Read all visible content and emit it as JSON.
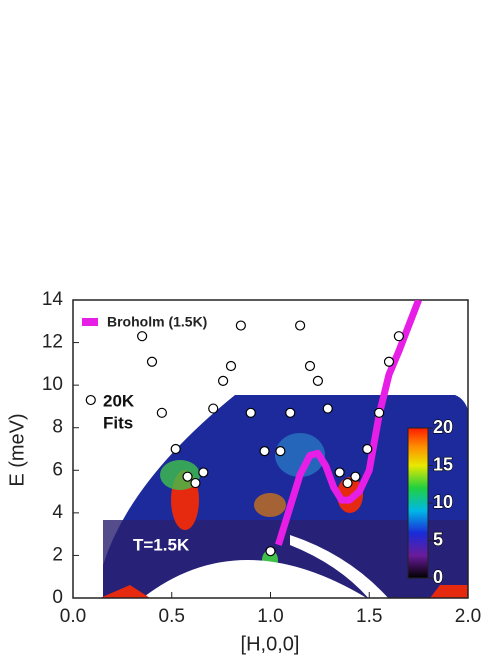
{
  "chart_data": {
    "type": "scatter-line",
    "x_label": "[H,0,0]",
    "y_label": "E (meV)",
    "xlim": [
      0,
      2
    ],
    "ylim": [
      0,
      14
    ],
    "xticks": [
      {
        "value": 0,
        "label": "0.0"
      },
      {
        "value": 0.5,
        "label": "0.5"
      },
      {
        "value": 1,
        "label": "1.0"
      },
      {
        "value": 1.5,
        "label": "1.5"
      },
      {
        "value": 2,
        "label": "2.0"
      }
    ],
    "yticks": [
      0,
      2,
      4,
      6,
      8,
      10,
      12,
      14
    ],
    "annotations": [
      "20K",
      "Fits",
      "T=1.5K"
    ],
    "series": [
      {
        "name": "Broholm (1.5K)",
        "type": "line",
        "color": "#e61ee6",
        "x": [
          1.04,
          1.1,
          1.15,
          1.2,
          1.24,
          1.28,
          1.32,
          1.36,
          1.4,
          1.45,
          1.5,
          1.55,
          1.6,
          1.65,
          1.7,
          1.75
        ],
        "values": [
          2.5,
          4.3,
          5.8,
          6.7,
          6.8,
          6.2,
          5.2,
          4.6,
          4.6,
          5.0,
          6.0,
          8.6,
          10.5,
          11.6,
          12.8,
          14
        ]
      },
      {
        "type": "scatter",
        "color": "#ffffff",
        "x": [
          0.09,
          0.35,
          0.4,
          0.45,
          0.52,
          0.58,
          0.62,
          0.66,
          0.71,
          0.76,
          0.8,
          0.85,
          0.9,
          0.97,
          1.0,
          1.05,
          1.1,
          1.15,
          1.2,
          1.24,
          1.29,
          1.35,
          1.39,
          1.43,
          1.49,
          1.55,
          1.6,
          1.65
        ],
        "values": [
          9.3,
          12.3,
          11.1,
          8.7,
          7.0,
          5.7,
          5.4,
          5.9,
          8.9,
          10.2,
          10.9,
          12.8,
          8.7,
          6.9,
          2.2,
          6.9,
          8.7,
          12.8,
          10.9,
          10.2,
          8.9,
          5.9,
          5.4,
          5.7,
          7.0,
          8.7,
          11.1,
          12.3
        ]
      }
    ],
    "colorbar": {
      "lim": [
        0,
        20
      ],
      "ticks": [
        0,
        5,
        10,
        15,
        20
      ]
    }
  }
}
